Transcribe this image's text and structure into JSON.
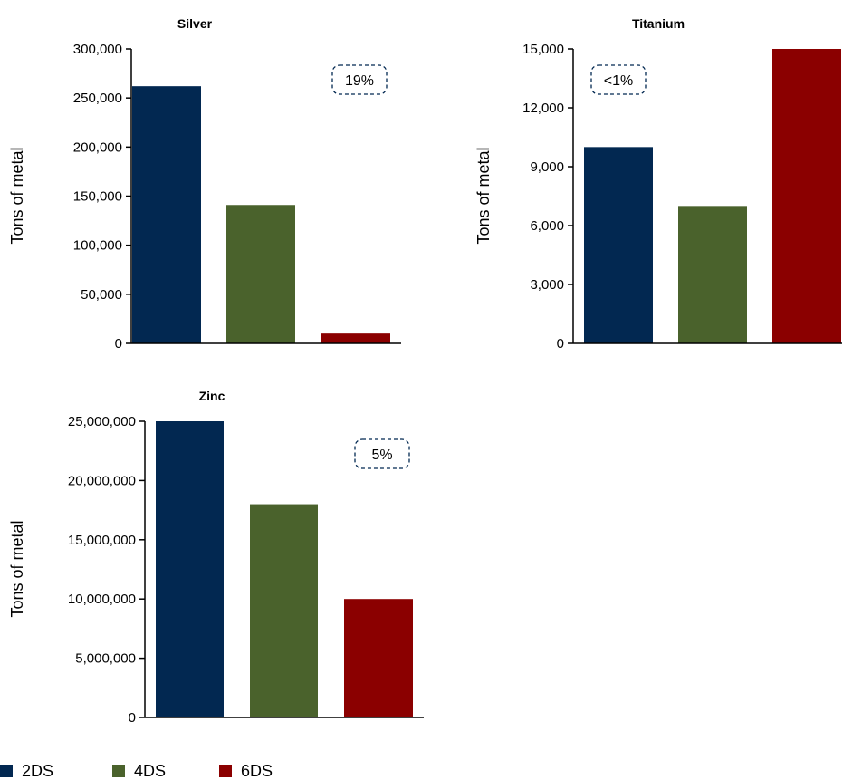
{
  "chart_data": [
    {
      "type": "bar",
      "title": "Silver",
      "ylabel": "Tons of metal",
      "categories": [
        "2DS",
        "4DS",
        "6DS"
      ],
      "values": [
        262000,
        141000,
        10000
      ],
      "ylim": [
        0,
        300000
      ],
      "yticks": [
        0,
        50000,
        100000,
        150000,
        200000,
        250000,
        300000
      ],
      "ytick_labels": [
        "0",
        "50,000",
        "100,000",
        "150,000",
        "200,000",
        "250,000",
        "300,000"
      ],
      "annotation": "19%",
      "grid": false
    },
    {
      "type": "bar",
      "title": "Titanium",
      "ylabel": "Tons of metal",
      "categories": [
        "2DS",
        "4DS",
        "6DS"
      ],
      "values": [
        10000,
        7000,
        15000
      ],
      "ylim": [
        0,
        15000
      ],
      "yticks": [
        0,
        3000,
        6000,
        9000,
        12000,
        15000
      ],
      "ytick_labels": [
        "0",
        "3,000",
        "6,000",
        "9,000",
        "12,000",
        "15,000"
      ],
      "annotation": "<1%",
      "grid": false
    },
    {
      "type": "bar",
      "title": "Zinc",
      "ylabel": "Tons of metal",
      "categories": [
        "2DS",
        "4DS",
        "6DS"
      ],
      "values": [
        25000000,
        18000000,
        10000000
      ],
      "ylim": [
        0,
        25000000
      ],
      "yticks": [
        0,
        5000000,
        10000000,
        15000000,
        20000000,
        25000000
      ],
      "ytick_labels": [
        "0",
        "5,000,000",
        "10,000,000",
        "15,000,000",
        "20,000,000",
        "25,000,000"
      ],
      "annotation": "5%",
      "grid": false
    }
  ],
  "legend": {
    "placement": "bottom-left",
    "items": [
      {
        "label": "2DS",
        "color": "#022851"
      },
      {
        "label": "4DS",
        "color": "#4a622c"
      },
      {
        "label": "6DS",
        "color": "#8b0000"
      }
    ]
  },
  "colors": {
    "2DS": "#022851",
    "4DS": "#4a622c",
    "6DS": "#8b0000",
    "annotation_border": "#022851",
    "axis": "#000000"
  }
}
